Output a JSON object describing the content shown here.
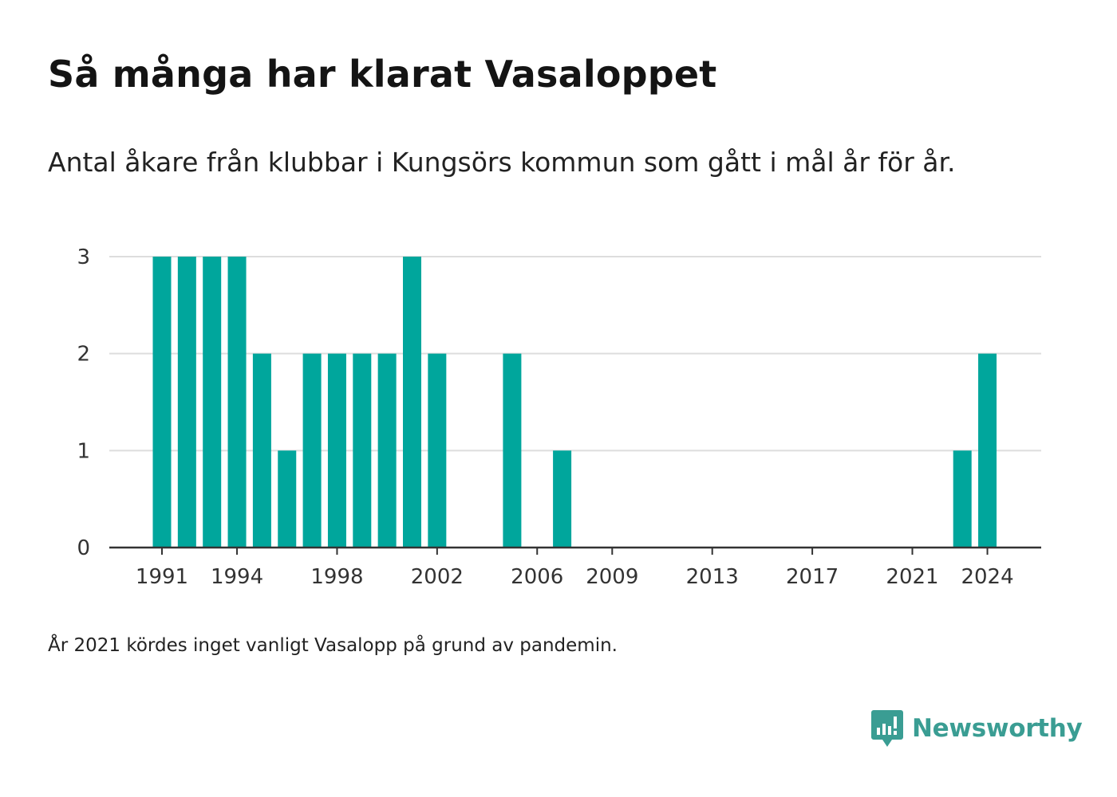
{
  "header": {
    "title": "Så många har klarat Vasaloppet",
    "subtitle": "Antal åkare från klubbar i Kungsörs kommun som gått i mål år för år."
  },
  "footnote": "År 2021 kördes inget vanligt Vasalopp på grund av pandemin.",
  "brand": {
    "name": "Newsworthy",
    "icon": "newsworthy-logo-icon",
    "color": "#3a9d93"
  },
  "colors": {
    "bar": "#00a69c",
    "grid": "#dddddd",
    "axis": "#333333"
  },
  "chart_data": {
    "type": "bar",
    "x": [
      1991,
      1992,
      1993,
      1994,
      1995,
      1996,
      1997,
      1998,
      1999,
      2000,
      2001,
      2002,
      2003,
      2004,
      2005,
      2006,
      2007,
      2008,
      2009,
      2010,
      2011,
      2012,
      2013,
      2014,
      2015,
      2016,
      2017,
      2018,
      2019,
      2020,
      2021,
      2022,
      2023,
      2024
    ],
    "values": [
      3,
      3,
      3,
      3,
      2,
      1,
      2,
      2,
      2,
      2,
      3,
      2,
      0,
      0,
      2,
      0,
      1,
      0,
      0,
      0,
      0,
      0,
      0,
      0,
      0,
      0,
      0,
      0,
      0,
      0,
      0,
      0,
      1,
      2
    ],
    "x_ticks": [
      "1991",
      "1994",
      "1998",
      "2002",
      "2006",
      "2009",
      "2013",
      "2017",
      "2021",
      "2024"
    ],
    "y_ticks": [
      "0",
      "1",
      "2",
      "3"
    ],
    "ylim": [
      0,
      3
    ],
    "grid": true
  }
}
